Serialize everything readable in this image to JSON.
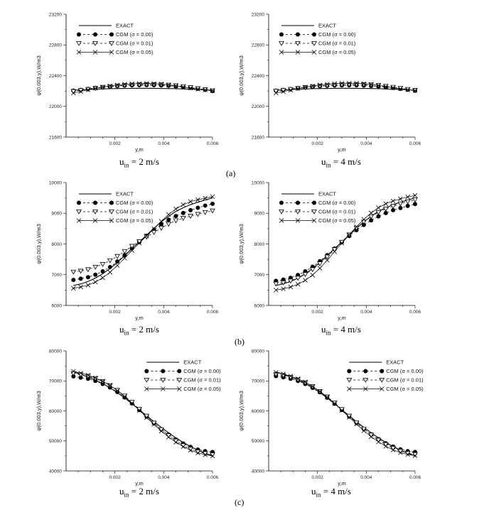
{
  "figure": {
    "row_labels": [
      "(a)",
      "(b)",
      "(c)"
    ]
  },
  "chart_data": [
    {
      "type": "line",
      "id": "a-left",
      "xlabel": "y,m",
      "ylabel": "ψ(0.003,y),W/m3",
      "uin": {
        "base": "u",
        "sub": "in",
        "value": " = 2 m/s"
      },
      "xlim": [
        0,
        0.006
      ],
      "ylim": [
        21600,
        23200
      ],
      "xticks": [
        "0.002",
        "0.004",
        "0.006"
      ],
      "xtick_values": [
        0.002,
        0.004,
        0.006
      ],
      "yticks": [
        "21600",
        "22000",
        "22400",
        "22800",
        "23200"
      ],
      "ytick_values": [
        21600,
        22000,
        22400,
        22800,
        23200
      ],
      "legend": [
        "EXACT",
        "CGM (σ = 0.00)",
        "CGM (σ = 0.01)",
        "CGM (σ = 0.05)"
      ],
      "legend_position": "top-left",
      "x": [
        0.0003,
        0.0006,
        0.0009,
        0.0012,
        0.0015,
        0.0018,
        0.0021,
        0.0024,
        0.0027,
        0.003,
        0.0033,
        0.0036,
        0.0039,
        0.0042,
        0.0045,
        0.0048,
        0.0051,
        0.0054,
        0.0057,
        0.006
      ],
      "series": [
        {
          "name": "EXACT",
          "values": [
            22210,
            22215,
            22220,
            22224,
            22227,
            22230,
            22232,
            22233,
            22234,
            22235,
            22235,
            22234,
            22233,
            22232,
            22230,
            22227,
            22224,
            22220,
            22215,
            22210
          ]
        },
        {
          "name": "CGM (σ = 0.00)",
          "values": [
            22205,
            22215,
            22228,
            22240,
            22250,
            22258,
            22265,
            22270,
            22274,
            22276,
            22277,
            22276,
            22273,
            22268,
            22261,
            22252,
            22242,
            22230,
            22217,
            22200
          ]
        },
        {
          "name": "CGM (σ = 0.01)",
          "values": [
            22195,
            22208,
            22222,
            22236,
            22248,
            22258,
            22267,
            22274,
            22279,
            22283,
            22285,
            22285,
            22283,
            22278,
            22270,
            22259,
            22246,
            22232,
            22218,
            22205
          ]
        },
        {
          "name": "CGM (σ = 0.05)",
          "values": [
            22175,
            22195,
            22215,
            22235,
            22252,
            22266,
            22278,
            22287,
            22293,
            22297,
            22298,
            22296,
            22290,
            22280,
            22267,
            22252,
            22238,
            22225,
            22214,
            22205
          ]
        }
      ]
    },
    {
      "type": "line",
      "id": "a-right",
      "xlabel": "y,m",
      "ylabel": "ψ(0.003,y),W/m3",
      "uin": {
        "base": "u",
        "sub": "in",
        "value": " = 4 m/s"
      },
      "xlim": [
        0,
        0.006
      ],
      "ylim": [
        21600,
        23200
      ],
      "xticks": [
        "0.002",
        "0.004",
        "0.006"
      ],
      "xtick_values": [
        0.002,
        0.004,
        0.006
      ],
      "yticks": [
        "21600",
        "22000",
        "22400",
        "22800",
        "23200"
      ],
      "ytick_values": [
        21600,
        22000,
        22400,
        22800,
        23200
      ],
      "legend": [
        "EXACT",
        "CGM (σ = 0.00)",
        "CGM (σ = 0.01)",
        "CGM (σ = 0.05)"
      ],
      "legend_position": "top-left",
      "x": [
        0.0003,
        0.0006,
        0.0009,
        0.0012,
        0.0015,
        0.0018,
        0.0021,
        0.0024,
        0.0027,
        0.003,
        0.0033,
        0.0036,
        0.0039,
        0.0042,
        0.0045,
        0.0048,
        0.0051,
        0.0054,
        0.0057,
        0.006
      ],
      "series": [
        {
          "name": "EXACT",
          "values": [
            22210,
            22215,
            22220,
            22224,
            22227,
            22230,
            22232,
            22233,
            22234,
            22235,
            22235,
            22234,
            22233,
            22232,
            22230,
            22227,
            22224,
            22220,
            22215,
            22210
          ]
        },
        {
          "name": "CGM (σ = 0.00)",
          "values": [
            22205,
            22214,
            22226,
            22238,
            22248,
            22256,
            22263,
            22268,
            22272,
            22274,
            22275,
            22274,
            22271,
            22266,
            22259,
            22250,
            22240,
            22229,
            22217,
            22205
          ]
        },
        {
          "name": "CGM (σ = 0.01)",
          "values": [
            22200,
            22210,
            22222,
            22235,
            22246,
            22256,
            22265,
            22272,
            22278,
            22282,
            22285,
            22286,
            22285,
            22281,
            22274,
            22263,
            22250,
            22236,
            22222,
            22210
          ]
        },
        {
          "name": "CGM (σ = 0.05)",
          "values": [
            22175,
            22193,
            22212,
            22232,
            22250,
            22265,
            22278,
            22288,
            22295,
            22300,
            22302,
            22300,
            22295,
            22286,
            22273,
            22258,
            22243,
            22229,
            22217,
            22207
          ]
        }
      ]
    },
    {
      "type": "line",
      "id": "b-left",
      "xlabel": "y,m",
      "ylabel": "ψ(0.003,y),W/m3",
      "uin": {
        "base": "u",
        "sub": "in",
        "value": " = 2 m/s"
      },
      "xlim": [
        0,
        0.006
      ],
      "ylim": [
        6000,
        10000
      ],
      "xticks": [
        "0.002",
        "0.004",
        "0.006"
      ],
      "xtick_values": [
        0.002,
        0.004,
        0.006
      ],
      "yticks": [
        "6000",
        "7000",
        "8000",
        "9000",
        "10000"
      ],
      "ytick_values": [
        6000,
        7000,
        8000,
        9000,
        10000
      ],
      "legend": [
        "EXACT",
        "CGM (σ = 0.00)",
        "CGM (σ = 0.01)",
        "CGM (σ = 0.05)"
      ],
      "legend_position": "top-left",
      "x": [
        0.0003,
        0.0006,
        0.0009,
        0.0012,
        0.0015,
        0.0018,
        0.0021,
        0.0024,
        0.0027,
        0.003,
        0.0033,
        0.0036,
        0.0039,
        0.0042,
        0.0045,
        0.0048,
        0.0051,
        0.0054,
        0.0057,
        0.006
      ],
      "series": [
        {
          "name": "EXACT",
          "values": [
            6650,
            6700,
            6780,
            6890,
            7030,
            7200,
            7400,
            7620,
            7850,
            8070,
            8290,
            8510,
            8720,
            8900,
            9060,
            9180,
            9280,
            9360,
            9430,
            9500
          ]
        },
        {
          "name": "CGM (σ = 0.00)",
          "values": [
            6830,
            6870,
            6920,
            7000,
            7110,
            7250,
            7430,
            7640,
            7860,
            8060,
            8270,
            8460,
            8640,
            8790,
            8910,
            9010,
            9100,
            9180,
            9250,
            9310
          ]
        },
        {
          "name": "CGM (σ = 0.01)",
          "values": [
            7090,
            7120,
            7170,
            7250,
            7340,
            7460,
            7600,
            7760,
            7930,
            8080,
            8230,
            8380,
            8520,
            8650,
            8760,
            8840,
            8910,
            8970,
            9030,
            9080
          ]
        },
        {
          "name": "CGM (σ = 0.05)",
          "values": [
            6560,
            6600,
            6660,
            6760,
            6900,
            7080,
            7300,
            7540,
            7790,
            8030,
            8260,
            8500,
            8740,
            8960,
            9140,
            9280,
            9380,
            9440,
            9490,
            9540
          ]
        }
      ]
    },
    {
      "type": "line",
      "id": "b-right",
      "xlabel": "y,m",
      "ylabel": "ψ(0.003,y),W/m3",
      "uin": {
        "base": "u",
        "sub": "in",
        "value": " = 4 m/s"
      },
      "xlim": [
        0,
        0.006
      ],
      "ylim": [
        6000,
        10000
      ],
      "xticks": [
        "0.002",
        "0.004",
        "0.006"
      ],
      "xtick_values": [
        0.002,
        0.004,
        0.006
      ],
      "yticks": [
        "6000",
        "7000",
        "8000",
        "9000",
        "10000"
      ],
      "ytick_values": [
        6000,
        7000,
        8000,
        9000,
        10000
      ],
      "legend": [
        "EXACT",
        "CGM (σ = 0.00)",
        "CGM (σ = 0.01)",
        "CGM (σ = 0.05)"
      ],
      "legend_position": "top-left",
      "x": [
        0.0003,
        0.0006,
        0.0009,
        0.0012,
        0.0015,
        0.0018,
        0.0021,
        0.0024,
        0.0027,
        0.003,
        0.0033,
        0.0036,
        0.0039,
        0.0042,
        0.0045,
        0.0048,
        0.0051,
        0.0054,
        0.0057,
        0.006
      ],
      "series": [
        {
          "name": "EXACT",
          "values": [
            6650,
            6700,
            6780,
            6890,
            7030,
            7200,
            7400,
            7620,
            7850,
            8070,
            8290,
            8510,
            8720,
            8900,
            9060,
            9180,
            9280,
            9360,
            9430,
            9500
          ]
        },
        {
          "name": "CGM (σ = 0.00)",
          "values": [
            6800,
            6840,
            6900,
            6990,
            7110,
            7260,
            7440,
            7640,
            7850,
            8060,
            8260,
            8450,
            8620,
            8770,
            8900,
            9010,
            9100,
            9170,
            9240,
            9300
          ]
        },
        {
          "name": "CGM (σ = 0.01)",
          "values": [
            6700,
            6740,
            6800,
            6890,
            7010,
            7170,
            7360,
            7580,
            7820,
            8060,
            8300,
            8520,
            8720,
            8890,
            9030,
            9140,
            9230,
            9310,
            9380,
            9440
          ]
        },
        {
          "name": "CGM (σ = 0.05)",
          "values": [
            6500,
            6540,
            6600,
            6690,
            6820,
            6990,
            7210,
            7470,
            7750,
            8030,
            8300,
            8560,
            8800,
            9010,
            9180,
            9310,
            9400,
            9470,
            9530,
            9580
          ]
        }
      ]
    },
    {
      "type": "line",
      "id": "c-left",
      "xlabel": "y,m",
      "ylabel": "ψ(0.003,y),W/m3",
      "uin": {
        "base": "u",
        "sub": "in",
        "value": " = 2 m/s"
      },
      "xlim": [
        0,
        0.006
      ],
      "ylim": [
        40000,
        80000
      ],
      "xticks": [
        "0.002",
        "0.004",
        "0.006"
      ],
      "xtick_values": [
        0.002,
        0.004,
        0.006
      ],
      "yticks": [
        "40000",
        "50000",
        "60000",
        "70000",
        "80000"
      ],
      "ytick_values": [
        40000,
        50000,
        60000,
        70000,
        80000
      ],
      "legend": [
        "EXACT",
        "CGM (σ = 0.00)",
        "CGM (σ = 0.01)",
        "CGM (σ = 0.05)"
      ],
      "legend_position": "top-right",
      "x": [
        0.0003,
        0.0006,
        0.0009,
        0.0012,
        0.0015,
        0.0018,
        0.0021,
        0.0024,
        0.0027,
        0.003,
        0.0033,
        0.0036,
        0.0039,
        0.0042,
        0.0045,
        0.0048,
        0.0051,
        0.0054,
        0.0057,
        0.006
      ],
      "series": [
        {
          "name": "EXACT",
          "values": [
            73000,
            72200,
            71300,
            70300,
            69100,
            67700,
            66100,
            64300,
            62400,
            60400,
            58400,
            56400,
            54500,
            52700,
            51000,
            49500,
            48100,
            46900,
            45900,
            45000
          ]
        },
        {
          "name": "CGM (σ = 0.00)",
          "values": [
            71500,
            71100,
            70700,
            70000,
            69000,
            67800,
            66300,
            64500,
            62500,
            60300,
            58100,
            55900,
            53900,
            52100,
            50500,
            49100,
            48000,
            47100,
            46600,
            46300
          ]
        },
        {
          "name": "CGM (σ = 0.01)",
          "values": [
            72500,
            72100,
            71600,
            70800,
            69800,
            68500,
            66900,
            65000,
            62900,
            60600,
            58300,
            56000,
            53800,
            51800,
            50000,
            48500,
            47300,
            46400,
            45800,
            45400
          ]
        },
        {
          "name": "CGM (σ = 0.05)",
          "values": [
            73200,
            72600,
            71900,
            71000,
            69900,
            68500,
            66800,
            64800,
            62600,
            60200,
            57800,
            55500,
            53300,
            51300,
            49600,
            48100,
            46900,
            46000,
            45400,
            45000
          ]
        }
      ]
    },
    {
      "type": "line",
      "id": "c-right",
      "xlabel": "y,m",
      "ylabel": "ψ(0.003,y),W/m3",
      "uin": {
        "base": "u",
        "sub": "in",
        "value": " = 4 m/s"
      },
      "xlim": [
        0,
        0.006
      ],
      "ylim": [
        40000,
        80000
      ],
      "xticks": [
        "0.002",
        "0.004",
        "0.006"
      ],
      "xtick_values": [
        0.002,
        0.004,
        0.006
      ],
      "yticks": [
        "40000",
        "50000",
        "60000",
        "70000",
        "80000"
      ],
      "ytick_values": [
        40000,
        50000,
        60000,
        70000,
        80000
      ],
      "legend": [
        "EXACT",
        "CGM (σ = 0.00)",
        "CGM (σ = 0.01)",
        "CGM (σ = 0.05)"
      ],
      "legend_position": "top-right",
      "x": [
        0.0003,
        0.0006,
        0.0009,
        0.0012,
        0.0015,
        0.0018,
        0.0021,
        0.0024,
        0.0027,
        0.003,
        0.0033,
        0.0036,
        0.0039,
        0.0042,
        0.0045,
        0.0048,
        0.0051,
        0.0054,
        0.0057,
        0.006
      ],
      "series": [
        {
          "name": "EXACT",
          "values": [
            73000,
            72200,
            71300,
            70300,
            69100,
            67700,
            66100,
            64300,
            62400,
            60400,
            58400,
            56400,
            54500,
            52700,
            51000,
            49500,
            48100,
            46900,
            45900,
            45000
          ]
        },
        {
          "name": "CGM (σ = 0.00)",
          "values": [
            71600,
            71200,
            70700,
            70000,
            69000,
            67700,
            66200,
            64400,
            62400,
            60300,
            58100,
            56000,
            54000,
            52200,
            50600,
            49200,
            48100,
            47200,
            46600,
            46300
          ]
        },
        {
          "name": "CGM (σ = 0.01)",
          "values": [
            72200,
            71800,
            71200,
            70400,
            69400,
            68100,
            66500,
            64700,
            62700,
            60500,
            58300,
            56100,
            54000,
            52000,
            50300,
            48800,
            47600,
            46600,
            45900,
            45500
          ]
        },
        {
          "name": "CGM (σ = 0.05)",
          "values": [
            72800,
            72300,
            71600,
            70700,
            69600,
            68200,
            66500,
            64600,
            62500,
            60200,
            57900,
            55600,
            53400,
            51400,
            49700,
            48200,
            47000,
            46100,
            45500,
            45100
          ]
        }
      ]
    }
  ]
}
